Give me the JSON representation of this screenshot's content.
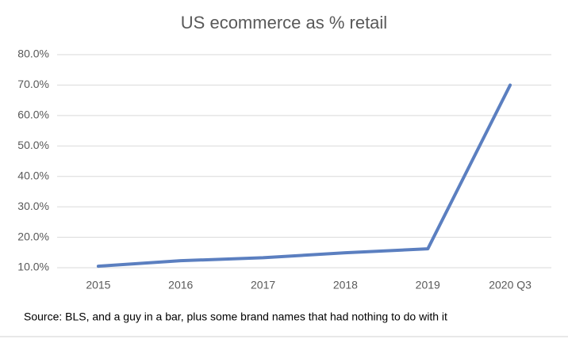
{
  "chart_data": {
    "type": "line",
    "title": "US ecommerce as % retail",
    "categories": [
      "2015",
      "2016",
      "2017",
      "2018",
      "2019",
      "2020 Q3"
    ],
    "values": [
      10.5,
      12.3,
      13.3,
      14.9,
      16.2,
      70.0
    ],
    "color": "#5b7fc0",
    "ylim": [
      10,
      80
    ],
    "yticks": [
      {
        "value": 10,
        "label": "10.0%"
      },
      {
        "value": 20,
        "label": "20.0%"
      },
      {
        "value": 30,
        "label": "30.0%"
      },
      {
        "value": 40,
        "label": "40.0%"
      },
      {
        "value": 50,
        "label": "50.0%"
      },
      {
        "value": 60,
        "label": "60.0%"
      },
      {
        "value": 70,
        "label": "70.0%"
      },
      {
        "value": 80,
        "label": "80.0%"
      }
    ],
    "grid": true,
    "source": "Source: BLS, and a guy in a bar, plus some brand names that had nothing to do with it"
  }
}
